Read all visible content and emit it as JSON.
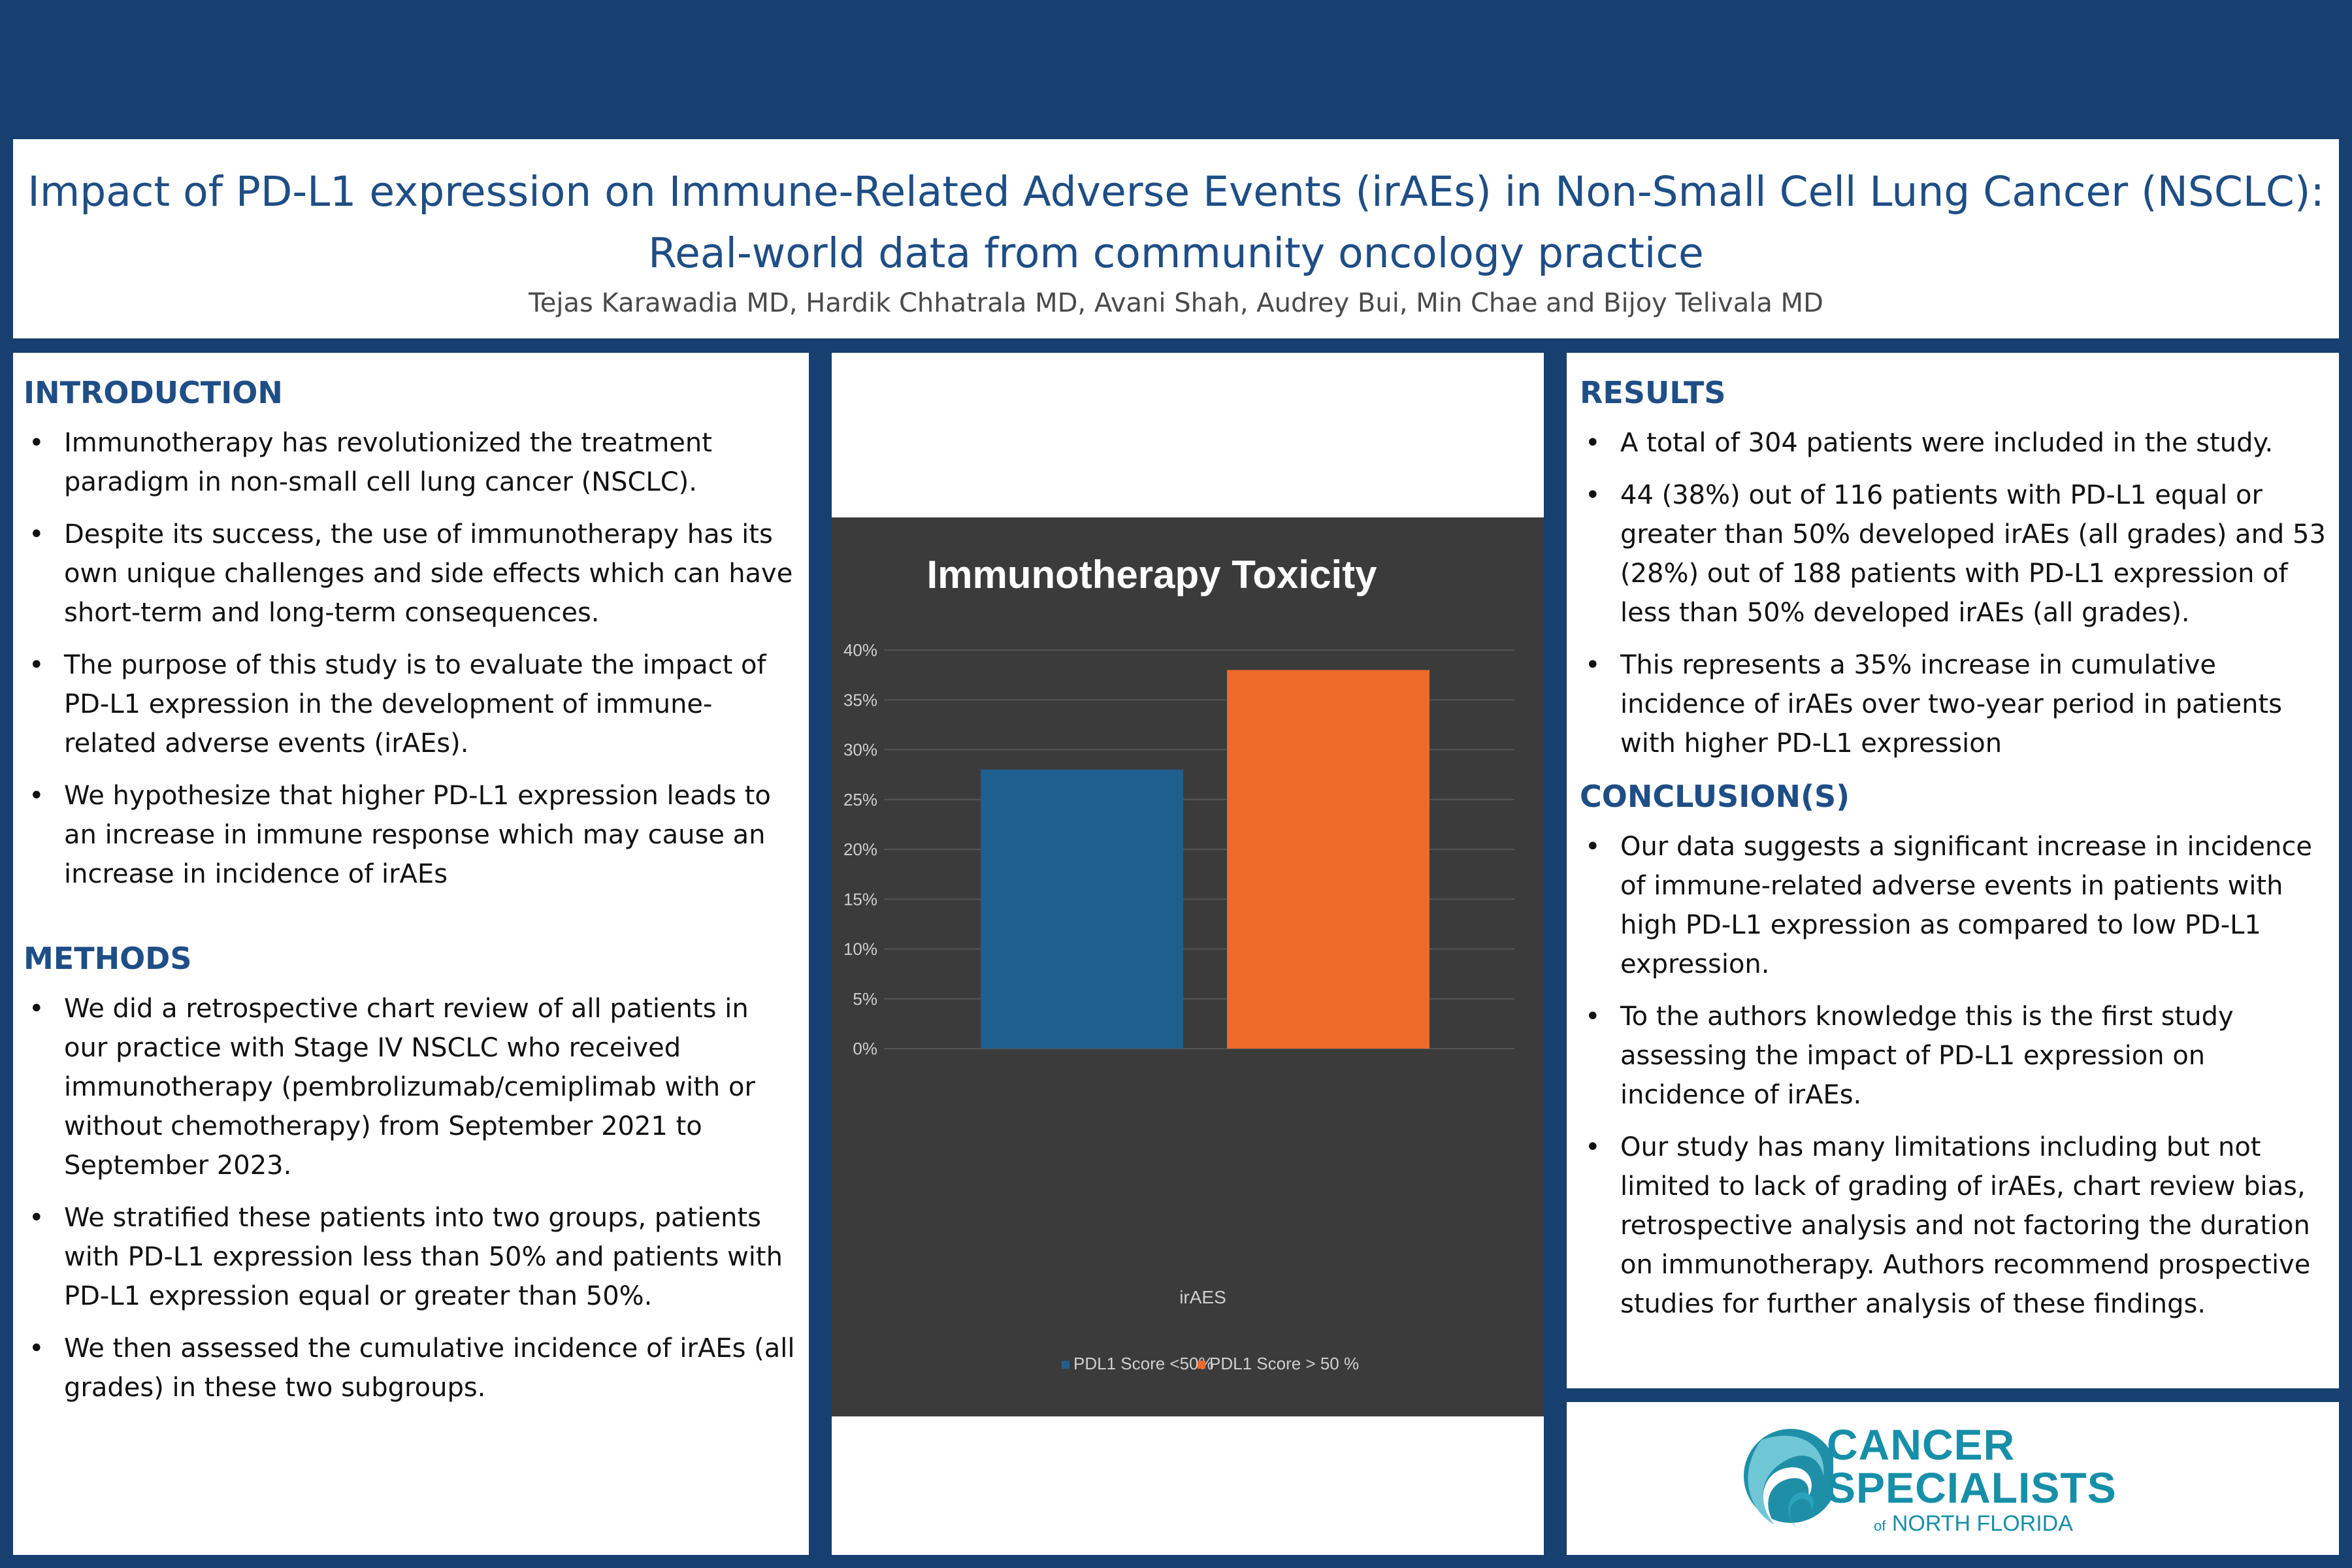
{
  "header": {
    "title_line1": "Impact of PD-L1 expression on Immune-Related Adverse Events (irAEs) in Non-Small Cell Lung Cancer (NSCLC):",
    "title_line2": "Real-world data from community oncology practice",
    "authors": "Tejas Karawadia MD, Hardik Chhatrala MD, Avani Shah, Audrey Bui, Min Chae and Bijoy Telivala MD"
  },
  "bullet_symbol": "•",
  "introduction": {
    "heading": "INTRODUCTION",
    "items": [
      "Immunotherapy has revolutionized the treatment paradigm in non-small cell lung cancer (NSCLC).",
      "Despite its success, the use of immunotherapy has its own unique challenges and side effects which can have short-term and long-term consequences.",
      "The purpose of this study is to evaluate the impact of PD-L1 expression in the development of immune-related adverse events (irAEs).",
      "We hypothesize that higher PD-L1 expression leads to an increase in immune response which may cause an increase in incidence of irAEs"
    ]
  },
  "methods": {
    "heading": "METHODS",
    "items": [
      "We did a retrospective chart review of all patients in our practice with Stage IV NSCLC who received immunotherapy (pembrolizumab/cemiplimab with or without chemotherapy) from September 2021 to September 2023.",
      "We stratified these patients into two groups, patients with PD-L1 expression less than 50% and patients with PD-L1 expression equal or greater than 50%.",
      "We then assessed the cumulative incidence of irAEs (all grades) in these two subgroups."
    ]
  },
  "results": {
    "heading": "RESULTS",
    "items": [
      "A total of 304 patients were included in the study.",
      "44 (38%) out of 116 patients with PD-L1 equal or greater than 50% developed irAEs (all grades) and 53 (28%) out of 188 patients with PD-L1 expression of less than 50% developed irAEs (all grades).",
      "This represents a 35% increase in cumulative incidence of irAEs over two-year period in patients with higher PD-L1 expression"
    ]
  },
  "conclusion": {
    "heading": "CONCLUSION(S)",
    "items": [
      "Our data suggests a significant increase in incidence of immune-related adverse events in patients with high PD-L1 expression as compared to low PD-L1 expression.",
      "To the authors knowledge this is the first study assessing the impact of PD-L1 expression on incidence of irAEs.",
      "Our study has many limitations including but not limited to lack of grading of irAEs, chart review bias, retrospective analysis and not factoring the duration on immunotherapy. Authors recommend prospective studies for further analysis of these findings."
    ]
  },
  "logo": {
    "line1": "CANCER",
    "line2": "SPECIALISTS",
    "line3_of": "of",
    "line3_rest": "NORTH FLORIDA"
  },
  "chart_data": {
    "type": "bar",
    "title": "Immunotherapy Toxicity",
    "categories": [
      "irAES"
    ],
    "series": [
      {
        "name": "PDL1 Score <50%",
        "values": [
          28
        ],
        "color": "#1f5f8f"
      },
      {
        "name": "PDL1 Score > 50 %",
        "values": [
          38
        ],
        "color": "#ed6a28"
      }
    ],
    "ylim": [
      0,
      40
    ],
    "yticks": [
      "0%",
      "5%",
      "10%",
      "15%",
      "20%",
      "25%",
      "30%",
      "35%",
      "40%"
    ],
    "ytick_values": [
      0,
      5,
      10,
      15,
      20,
      25,
      30,
      35,
      40
    ],
    "xlabel": "",
    "ylabel": "",
    "grid": true,
    "legend": "bottom",
    "background": "#3b3b3b"
  }
}
